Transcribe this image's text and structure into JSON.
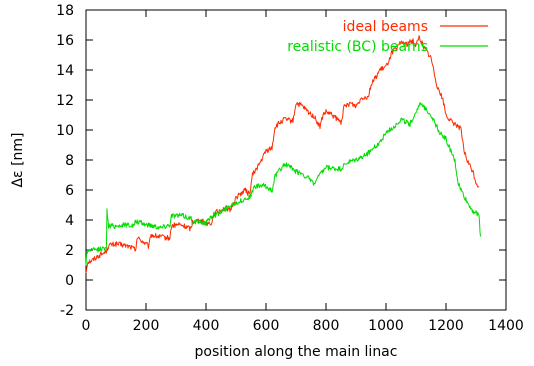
{
  "chart_data": {
    "type": "line",
    "xlabel": "position along the main linac",
    "ylabel": "Δε [nm]",
    "xlim": [
      0,
      1400
    ],
    "ylim": [
      -2,
      18
    ],
    "xticks": [
      0,
      200,
      400,
      600,
      800,
      1000,
      1200,
      1400
    ],
    "yticks": [
      -2,
      0,
      2,
      4,
      6,
      8,
      10,
      12,
      14,
      16,
      18
    ],
    "xtick_labels": [
      "0",
      "200",
      "400",
      "600",
      "800",
      "1000",
      "1200",
      "1400"
    ],
    "ytick_labels": [
      "-2",
      "0",
      "2",
      "4",
      "6",
      "8",
      "10",
      "12",
      "14",
      "16",
      "18"
    ],
    "legend_position": "top-right",
    "grid": false,
    "series": [
      {
        "name": "ideal beams",
        "color": "#ff2a00",
        "x": [
          0,
          5,
          20,
          40,
          60,
          70,
          75,
          100,
          130,
          150,
          165,
          170,
          180,
          200,
          210,
          215,
          240,
          270,
          280,
          285,
          310,
          340,
          350,
          355,
          380,
          400,
          420,
          425,
          450,
          470,
          480,
          500,
          530,
          545,
          555,
          580,
          600,
          620,
          630,
          660,
          690,
          700,
          720,
          740,
          760,
          780,
          790,
          800,
          820,
          850,
          860,
          880,
          900,
          920,
          940,
          950,
          980,
          1000,
          1020,
          1040,
          1050,
          1070,
          1090,
          1100,
          1110,
          1130,
          1150,
          1170,
          1190,
          1200,
          1220,
          1240,
          1250,
          1260,
          1270,
          1280,
          1290,
          1300,
          1310
        ],
        "y": [
          0.5,
          1.2,
          1.3,
          1.6,
          1.8,
          2.0,
          2.3,
          2.4,
          2.3,
          2.2,
          2.0,
          2.8,
          2.7,
          2.4,
          2.2,
          3.0,
          2.9,
          2.8,
          2.8,
          3.6,
          3.7,
          3.5,
          3.4,
          3.9,
          4.0,
          3.8,
          3.8,
          4.4,
          4.7,
          4.8,
          4.6,
          5.5,
          6.0,
          5.7,
          7.0,
          7.8,
          8.6,
          8.8,
          10.2,
          10.7,
          10.6,
          11.8,
          11.6,
          11.2,
          10.9,
          10.2,
          11.0,
          11.2,
          11.0,
          10.5,
          11.5,
          11.8,
          11.6,
          12.2,
          12.2,
          13.0,
          14.0,
          14.2,
          15.2,
          15.5,
          15.9,
          15.7,
          16.0,
          15.6,
          16.2,
          15.4,
          14.8,
          13.0,
          12.0,
          11.0,
          10.5,
          10.3,
          10.0,
          8.6,
          8.0,
          7.6,
          7.2,
          6.5,
          6.2
        ]
      },
      {
        "name": "realistic (BC) beams",
        "color": "#00dd00",
        "x": [
          0,
          3,
          10,
          30,
          60,
          68,
          70,
          75,
          100,
          140,
          160,
          165,
          200,
          230,
          250,
          280,
          285,
          320,
          350,
          355,
          400,
          420,
          440,
          470,
          480,
          520,
          550,
          560,
          590,
          620,
          630,
          660,
          680,
          690,
          720,
          740,
          760,
          780,
          800,
          830,
          850,
          870,
          900,
          930,
          960,
          980,
          1000,
          1030,
          1050,
          1080,
          1100,
          1110,
          1130,
          1150,
          1180,
          1200,
          1220,
          1230,
          1240,
          1250,
          1270,
          1290,
          1310,
          1315
        ],
        "y": [
          1.0,
          1.9,
          2.0,
          2.0,
          2.1,
          2.3,
          4.6,
          3.6,
          3.6,
          3.7,
          3.6,
          3.9,
          3.7,
          3.6,
          3.5,
          3.7,
          4.3,
          4.3,
          4.1,
          3.9,
          3.8,
          4.3,
          4.4,
          4.8,
          5.0,
          5.3,
          5.6,
          6.2,
          6.3,
          6.0,
          6.9,
          7.7,
          7.6,
          7.3,
          7.1,
          6.8,
          6.4,
          7.0,
          7.5,
          7.4,
          7.4,
          7.8,
          8.0,
          8.3,
          8.8,
          9.2,
          9.8,
          10.3,
          10.7,
          10.4,
          11.2,
          11.7,
          11.5,
          11.0,
          9.8,
          9.4,
          8.4,
          7.9,
          6.5,
          6.0,
          5.2,
          4.6,
          4.3,
          2.9
        ]
      }
    ]
  }
}
